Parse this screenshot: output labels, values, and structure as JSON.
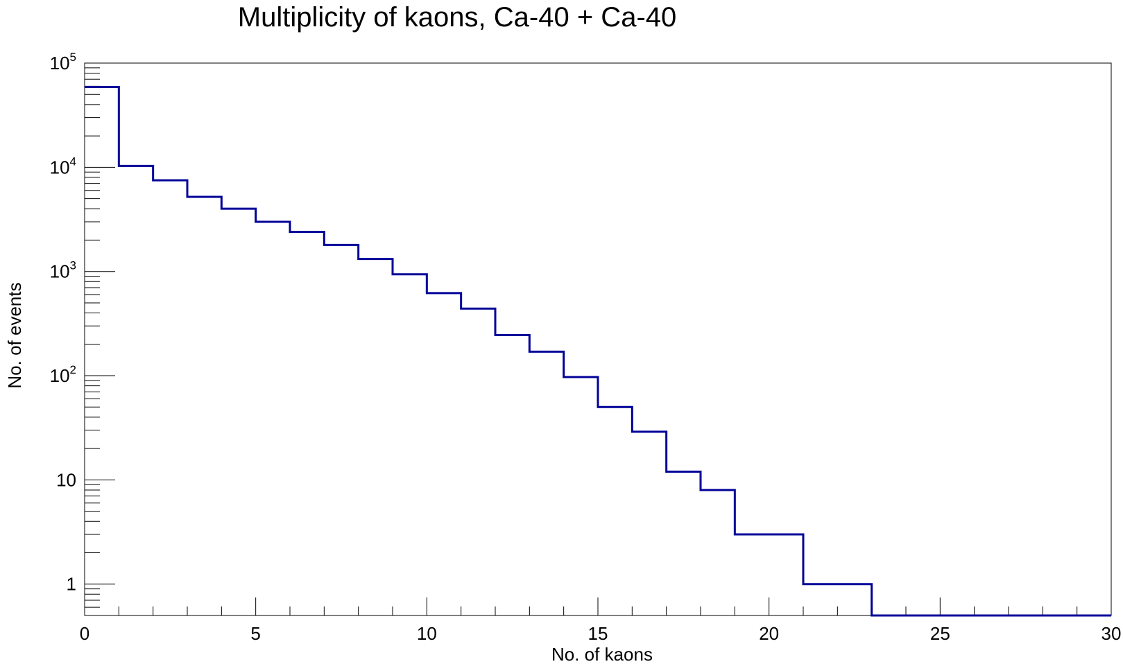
{
  "chart_data": {
    "type": "histogram",
    "title": "Multiplicity of kaons, Ca-40 + Ca-40",
    "xlabel": "No. of kaons",
    "ylabel": "No. of events",
    "xlim": [
      0,
      30
    ],
    "ylim": [
      0.5,
      100000
    ],
    "yscale": "log",
    "grid": false,
    "color": "#000099",
    "bin_width": 1,
    "bin_edges": [
      0,
      1,
      2,
      3,
      4,
      5,
      6,
      7,
      8,
      9,
      10,
      11,
      12,
      13,
      14,
      15,
      16,
      17,
      18,
      19,
      20,
      21,
      22,
      23,
      24,
      25,
      26,
      27,
      28,
      29,
      30
    ],
    "counts": [
      59000,
      10300,
      7500,
      5200,
      4000,
      3000,
      2400,
      1800,
      1320,
      940,
      620,
      440,
      245,
      170,
      97,
      50,
      29,
      12,
      8,
      3,
      3,
      1,
      1,
      0,
      0,
      0,
      0,
      0,
      0,
      0
    ],
    "x_ticks": [
      {
        "value": 0,
        "label": "0"
      },
      {
        "value": 5,
        "label": "5"
      },
      {
        "value": 10,
        "label": "10"
      },
      {
        "value": 15,
        "label": "15"
      },
      {
        "value": 20,
        "label": "20"
      },
      {
        "value": 25,
        "label": "25"
      },
      {
        "value": 30,
        "label": "30"
      }
    ],
    "y_ticks": [
      {
        "value": 1,
        "label": "1",
        "exponent": ""
      },
      {
        "value": 10,
        "label": "10",
        "exponent": ""
      },
      {
        "value": 100,
        "label": "10",
        "exponent": "2"
      },
      {
        "value": 1000,
        "label": "10",
        "exponent": "3"
      },
      {
        "value": 10000,
        "label": "10",
        "exponent": "4"
      },
      {
        "value": 100000,
        "label": "10",
        "exponent": "5"
      }
    ]
  }
}
